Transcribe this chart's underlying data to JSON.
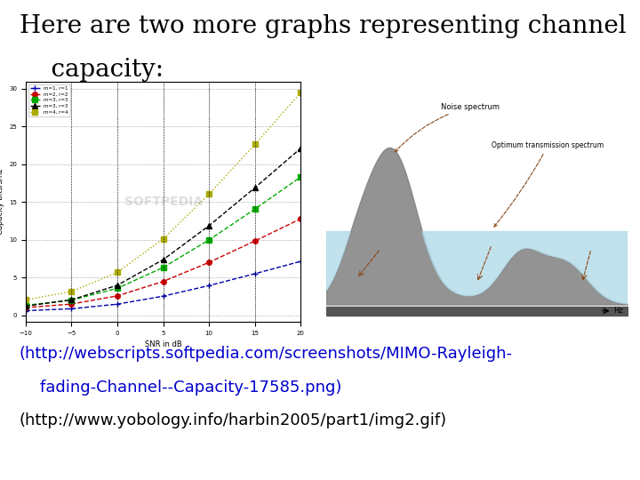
{
  "title_line1": "Here are two more graphs representing channel",
  "title_line2": "    capacity:",
  "bg_color": "#ffffff",
  "link1_line1": "(http://webscripts.softpedia.com/screenshots/MIMO-Rayleigh-",
  "link1_line2": "    fading-Channel--Capacity-17585.png)",
  "link2_text": "(http://www.yobology.info/harbin2005/part1/img2.gif)",
  "link_color": "#0000cc",
  "text_color": "#000000",
  "title_fontsize": 20,
  "link_fontsize": 13,
  "chart1_legend": [
    "m=1, r=1",
    "m=2, r=2",
    "m=3, r=3",
    "m=3, r=3",
    "m=4, r=4"
  ],
  "chart1_legend_colors": [
    "#0000aa",
    "#cc0000",
    "#00aa00",
    "#000000",
    "#aaaa00"
  ],
  "chart1_xlabel": "SNR in dB",
  "chart1_ylabel": "Capacity bits/s/hz",
  "noise_label": "Noise spectrum",
  "opt_label": "Optimum transmission spectrum",
  "hz_label": "Hz"
}
